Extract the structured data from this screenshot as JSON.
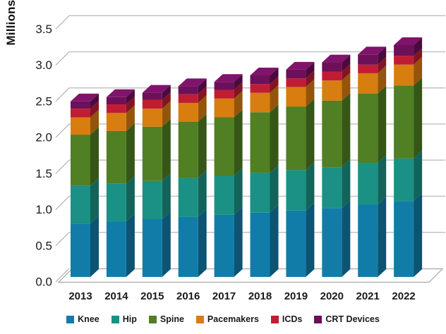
{
  "chart_data": {
    "type": "bar",
    "stacked": true,
    "projection": "3d",
    "title": "",
    "ylabel": "Millions",
    "xlabel": "",
    "categories": [
      "2013",
      "2014",
      "2015",
      "2016",
      "2017",
      "2018",
      "2019",
      "2020",
      "2021",
      "2022"
    ],
    "series": [
      {
        "name": "Knee",
        "color": "#127CA8",
        "values": [
          0.74,
          0.77,
          0.8,
          0.83,
          0.86,
          0.89,
          0.92,
          0.95,
          1.0,
          1.05
        ]
      },
      {
        "name": "Hip",
        "color": "#1A9184",
        "values": [
          0.52,
          0.52,
          0.53,
          0.54,
          0.54,
          0.55,
          0.56,
          0.57,
          0.58,
          0.59
        ]
      },
      {
        "name": "Spine",
        "color": "#507F24",
        "values": [
          0.71,
          0.73,
          0.75,
          0.78,
          0.81,
          0.84,
          0.88,
          0.92,
          0.96,
          1.01
        ]
      },
      {
        "name": "Pacemakers",
        "color": "#D87D10",
        "values": [
          0.24,
          0.25,
          0.25,
          0.26,
          0.26,
          0.27,
          0.27,
          0.28,
          0.28,
          0.29
        ]
      },
      {
        "name": "ICDs",
        "color": "#C01D34",
        "values": [
          0.12,
          0.12,
          0.12,
          0.12,
          0.12,
          0.12,
          0.12,
          0.12,
          0.12,
          0.12
        ]
      },
      {
        "name": "CRT Devices",
        "color": "#6B1059",
        "values": [
          0.1,
          0.1,
          0.1,
          0.11,
          0.11,
          0.12,
          0.12,
          0.13,
          0.14,
          0.15
        ]
      }
    ],
    "totals": [
      2.43,
      2.49,
      2.55,
      2.64,
      2.7,
      2.79,
      2.87,
      2.97,
      3.08,
      3.21
    ],
    "ylim": [
      0,
      3.5
    ],
    "ytick_step": 0.5,
    "ytick_labels": [
      "0.0",
      "0.5",
      "1.0",
      "1.5",
      "2.0",
      "2.5",
      "3.0",
      "3.5"
    ],
    "grid": true,
    "legend_position": "bottom"
  },
  "colors": {
    "background": "#FFFFFF",
    "gridline": "#C3C3C3",
    "floor_outline": "#A6A6A6",
    "axis_text": "#1A1A1A"
  }
}
